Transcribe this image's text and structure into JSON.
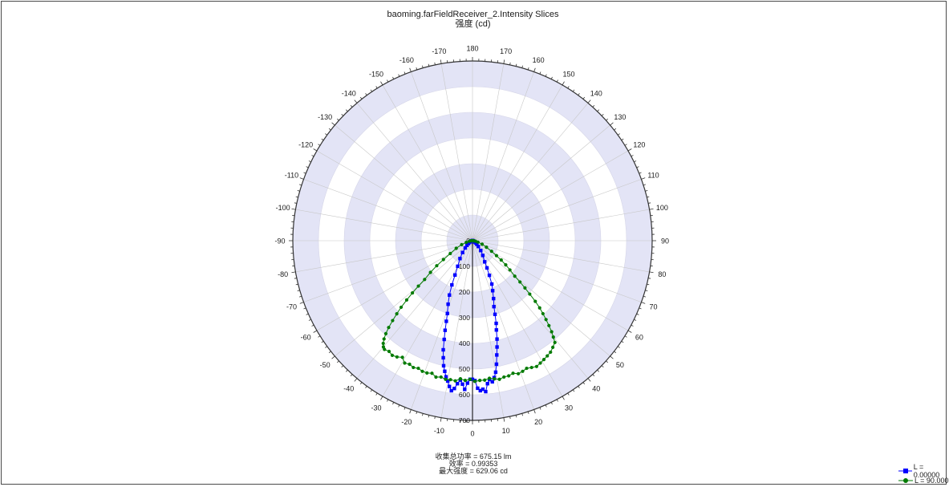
{
  "title": "baoming.farFieldReceiver_2.Intensity Slices",
  "subtitle": "强度 (cd)",
  "stats": {
    "power": "收集总功率 = 675.15  lm",
    "efficiency": "效率 = 0.99353",
    "max_intensity": "最大强度 = 629.06  cd"
  },
  "colors": {
    "ring_fill": "#e3e4f6",
    "grid": "#c8c8c8",
    "series_blue": "#0000ff",
    "series_green": "#007a00"
  },
  "chart_data": {
    "type": "polar-line",
    "title": "baoming.farFieldReceiver_2.Intensity Slices",
    "subtitle": "强度 (cd)",
    "angle_ticks_right": [
      0,
      10,
      20,
      30,
      40,
      50,
      60,
      70,
      80,
      90,
      100,
      110,
      120,
      130,
      140,
      150,
      160,
      170,
      180
    ],
    "angle_ticks_left": [
      -10,
      -20,
      -30,
      -40,
      -50,
      -60,
      -70,
      -80,
      -90,
      -100,
      -110,
      -120,
      -130,
      -140,
      -150,
      -160,
      -170
    ],
    "radial_ticks": [
      0,
      100,
      200,
      300,
      400,
      500,
      600,
      700
    ],
    "rlim": [
      0,
      700
    ],
    "legend_position": "bottom-right",
    "series": [
      {
        "name": "L = 0.00000",
        "color": "#0000ff",
        "marker": "square",
        "points": [
          [
            -90,
            0
          ],
          [
            -85,
            0
          ],
          [
            -80,
            1
          ],
          [
            -75,
            4
          ],
          [
            -70,
            6
          ],
          [
            -65,
            10
          ],
          [
            -60,
            14
          ],
          [
            -55,
            20
          ],
          [
            -50,
            28
          ],
          [
            -45,
            40
          ],
          [
            -40,
            60
          ],
          [
            -35,
            85
          ],
          [
            -30,
            115
          ],
          [
            -27,
            150
          ],
          [
            -25,
            190
          ],
          [
            -23,
            230
          ],
          [
            -21,
            265
          ],
          [
            -19,
            300
          ],
          [
            -18,
            330
          ],
          [
            -17,
            365
          ],
          [
            -16,
            400
          ],
          [
            -15,
            440
          ],
          [
            -14,
            470
          ],
          [
            -13,
            500
          ],
          [
            -12,
            520
          ],
          [
            -11,
            540
          ],
          [
            -10,
            555
          ],
          [
            -9,
            575
          ],
          [
            -8,
            590
          ],
          [
            -7,
            580
          ],
          [
            -6,
            560
          ],
          [
            -5,
            545
          ],
          [
            -4,
            560
          ],
          [
            -3,
            580
          ],
          [
            -2,
            555
          ],
          [
            -1,
            540
          ],
          [
            0,
            540
          ],
          [
            1,
            545
          ],
          [
            2,
            575
          ],
          [
            3,
            585
          ],
          [
            4,
            580
          ],
          [
            5,
            590
          ],
          [
            6,
            560
          ],
          [
            7,
            545
          ],
          [
            8,
            555
          ],
          [
            9,
            540
          ],
          [
            10,
            520
          ],
          [
            11,
            490
          ],
          [
            12,
            455
          ],
          [
            13,
            425
          ],
          [
            14,
            395
          ],
          [
            15,
            360
          ],
          [
            16,
            335
          ],
          [
            17,
            300
          ],
          [
            18,
            270
          ],
          [
            20,
            240
          ],
          [
            22,
            210
          ],
          [
            24,
            185
          ],
          [
            26,
            150
          ],
          [
            28,
            120
          ],
          [
            30,
            95
          ],
          [
            35,
            70
          ],
          [
            40,
            50
          ],
          [
            45,
            32
          ],
          [
            50,
            22
          ],
          [
            55,
            15
          ],
          [
            60,
            10
          ],
          [
            65,
            6
          ],
          [
            70,
            4
          ],
          [
            75,
            2
          ],
          [
            80,
            1
          ],
          [
            85,
            0
          ],
          [
            90,
            0
          ]
        ]
      },
      {
        "name": "L = 90.000",
        "color": "#007a00",
        "marker": "circle",
        "points": [
          [
            -90,
            0
          ],
          [
            -85,
            5
          ],
          [
            -80,
            12
          ],
          [
            -75,
            25
          ],
          [
            -70,
            45
          ],
          [
            -65,
            70
          ],
          [
            -60,
            100
          ],
          [
            -57,
            135
          ],
          [
            -55,
            170
          ],
          [
            -53,
            205
          ],
          [
            -51,
            240
          ],
          [
            -50,
            275
          ],
          [
            -49,
            310
          ],
          [
            -48,
            345
          ],
          [
            -47,
            380
          ],
          [
            -46,
            410
          ],
          [
            -45,
            440
          ],
          [
            -44,
            470
          ],
          [
            -43,
            495
          ],
          [
            -42,
            515
          ],
          [
            -41,
            530
          ],
          [
            -40,
            540
          ],
          [
            -39,
            545
          ],
          [
            -37,
            540
          ],
          [
            -35,
            545
          ],
          [
            -33,
            540
          ],
          [
            -31,
            530
          ],
          [
            -29,
            545
          ],
          [
            -27,
            540
          ],
          [
            -25,
            545
          ],
          [
            -23,
            540
          ],
          [
            -21,
            545
          ],
          [
            -19,
            545
          ],
          [
            -17,
            540
          ],
          [
            -15,
            550
          ],
          [
            -13,
            545
          ],
          [
            -11,
            550
          ],
          [
            -9,
            548
          ],
          [
            -7,
            550
          ],
          [
            -5,
            540
          ],
          [
            -3,
            545
          ],
          [
            -1,
            540
          ],
          [
            1,
            548
          ],
          [
            3,
            545
          ],
          [
            5,
            545
          ],
          [
            7,
            540
          ],
          [
            9,
            545
          ],
          [
            11,
            550
          ],
          [
            13,
            545
          ],
          [
            15,
            545
          ],
          [
            17,
            540
          ],
          [
            19,
            548
          ],
          [
            21,
            545
          ],
          [
            23,
            540
          ],
          [
            25,
            545
          ],
          [
            27,
            550
          ],
          [
            29,
            545
          ],
          [
            31,
            540
          ],
          [
            33,
            535
          ],
          [
            35,
            530
          ],
          [
            37,
            520
          ],
          [
            39,
            510
          ],
          [
            40,
            490
          ],
          [
            41,
            470
          ],
          [
            42,
            445
          ],
          [
            43,
            420
          ],
          [
            44,
            395
          ],
          [
            45,
            370
          ],
          [
            46,
            340
          ],
          [
            47,
            305
          ],
          [
            48,
            275
          ],
          [
            49,
            245
          ],
          [
            50,
            215
          ],
          [
            52,
            185
          ],
          [
            54,
            160
          ],
          [
            56,
            135
          ],
          [
            58,
            110
          ],
          [
            61,
            85
          ],
          [
            65,
            60
          ],
          [
            70,
            40
          ],
          [
            75,
            22
          ],
          [
            80,
            12
          ],
          [
            85,
            5
          ],
          [
            90,
            0
          ]
        ]
      }
    ]
  }
}
